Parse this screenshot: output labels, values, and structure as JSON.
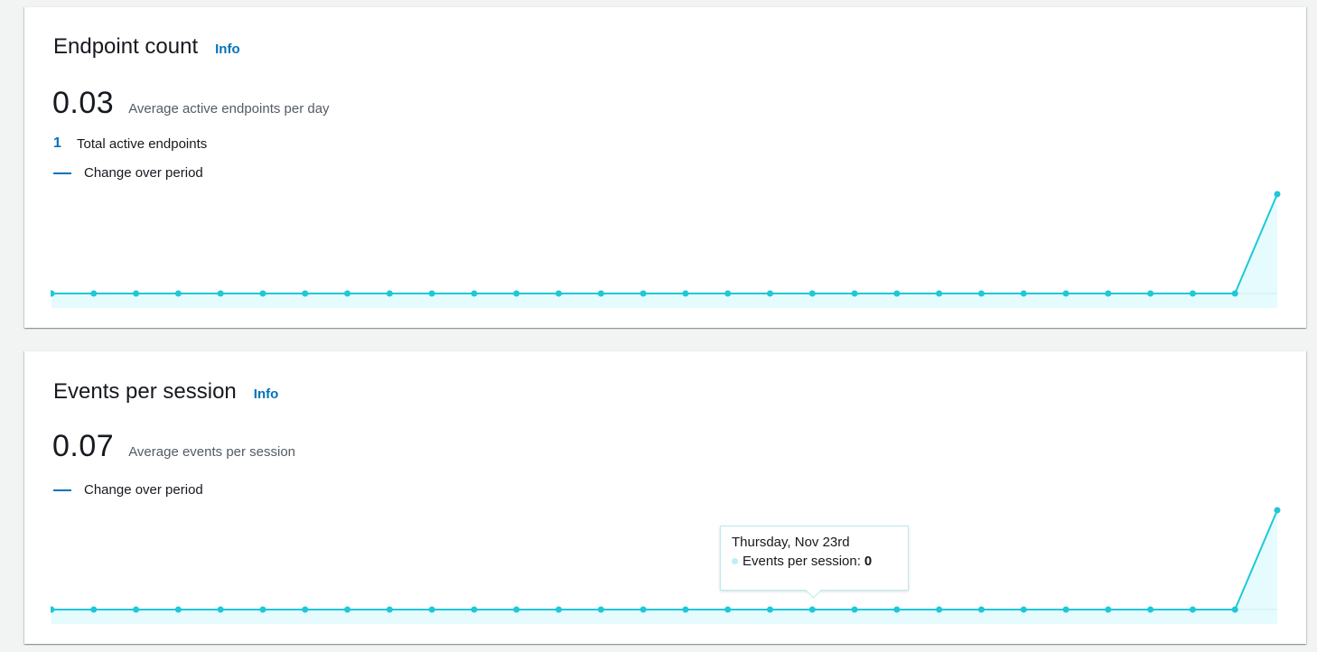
{
  "endpoint_count": {
    "title": "Endpoint count",
    "info_label": "Info",
    "metric_value": "0.03",
    "metric_label": "Average active endpoints per day",
    "total_count": "1",
    "total_label": "Total active endpoints",
    "legend_label": "Change over period"
  },
  "events_per_session": {
    "title": "Events per session",
    "info_label": "Info",
    "metric_value": "0.07",
    "metric_label": "Average events per session",
    "legend_label": "Change over period",
    "tooltip": {
      "date": "Thursday, Nov 23rd",
      "series_label": "Events per session:",
      "value": "0"
    }
  },
  "colors": {
    "line": "#1ec8d8",
    "area": "#e6fbfd",
    "accent": "#0073bb"
  },
  "chart_data": [
    {
      "type": "area",
      "series": [
        {
          "name": "Change over period",
          "values": [
            0,
            0,
            0,
            0,
            0,
            0,
            0,
            0,
            0,
            0,
            0,
            0,
            0,
            0,
            0,
            0,
            0,
            0,
            0,
            0,
            0,
            0,
            0,
            0,
            0,
            0,
            0,
            0,
            0,
            1
          ]
        }
      ],
      "ylim": [
        0,
        1
      ],
      "grid": false
    },
    {
      "type": "area",
      "series": [
        {
          "name": "Change over period",
          "values": [
            0,
            0,
            0,
            0,
            0,
            0,
            0,
            0,
            0,
            0,
            0,
            0,
            0,
            0,
            0,
            0,
            0,
            0,
            0,
            0,
            0,
            0,
            0,
            0,
            0,
            0,
            0,
            0,
            0,
            1
          ]
        }
      ],
      "ylim": [
        0,
        1
      ],
      "grid": false
    }
  ]
}
